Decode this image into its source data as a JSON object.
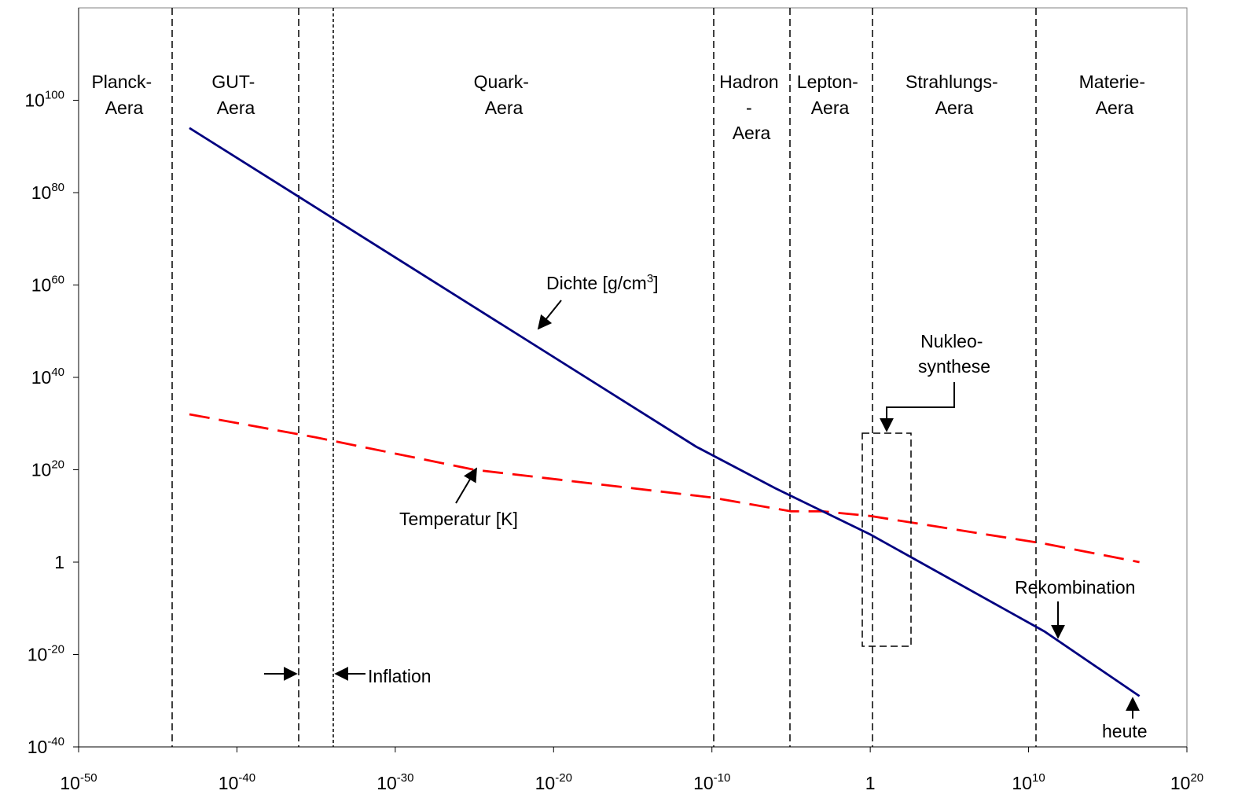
{
  "chart_data": {
    "type": "line",
    "xscale": "log",
    "yscale": "log",
    "xlim": [
      "1e-50",
      "1e20"
    ],
    "ylim": [
      "1e-40",
      "1e120"
    ],
    "grid": false,
    "x_ticks": [
      {
        "base": "10",
        "exp": "-50"
      },
      {
        "base": "10",
        "exp": "-40"
      },
      {
        "base": "10",
        "exp": "-30"
      },
      {
        "base": "10",
        "exp": "-20"
      },
      {
        "base": "10",
        "exp": "-10"
      },
      {
        "base": "1",
        "exp": ""
      },
      {
        "base": "10",
        "exp": "10"
      },
      {
        "base": "10",
        "exp": "20"
      }
    ],
    "y_ticks": [
      {
        "base": "10",
        "exp": "-40"
      },
      {
        "base": "10",
        "exp": "-20"
      },
      {
        "base": "1",
        "exp": ""
      },
      {
        "base": "10",
        "exp": "20"
      },
      {
        "base": "10",
        "exp": "40"
      },
      {
        "base": "10",
        "exp": "60"
      },
      {
        "base": "10",
        "exp": "80"
      },
      {
        "base": "10",
        "exp": "100"
      }
    ],
    "eras": [
      {
        "lines": [
          "Planck-",
          "Aera"
        ]
      },
      {
        "lines": [
          "GUT-",
          "Aera"
        ]
      },
      {
        "lines": [
          "Quark-",
          "Aera"
        ]
      },
      {
        "lines": [
          "Hadron",
          "-",
          "Aera"
        ]
      },
      {
        "lines": [
          "Lepton-",
          "Aera"
        ]
      },
      {
        "lines": [
          "Strahlungs-",
          "Aera"
        ]
      },
      {
        "lines": [
          "Materie-",
          "Aera"
        ]
      }
    ],
    "series": [
      {
        "name": "Dichte [g/cm3]",
        "label_main": "Dichte [g/cm",
        "label_sup": "3",
        "label_end": "]",
        "color": "#000080",
        "style": "solid",
        "x": [
          "1e-43",
          "1e-11",
          "1e-6",
          "1e0",
          "1e11",
          "1e17"
        ],
        "y": [
          "1e94",
          "1e25",
          "1e16",
          "1e6",
          "1e-15",
          "1e-29"
        ]
      },
      {
        "name": "Temperatur [K]",
        "label": "Temperatur [K]",
        "color": "#ff0000",
        "style": "dashed",
        "x": [
          "1e-43",
          "1e-35",
          "1e-25",
          "1e-10",
          "1e-5",
          "1e-3",
          "1e0",
          "1e11",
          "1e17"
        ],
        "y": [
          "1e32",
          "1e27",
          "1e20",
          "1e14",
          "1e11",
          "1e11",
          "1e10",
          "1e4",
          "1e0"
        ]
      }
    ],
    "annotations": {
      "inflation": "Inflation",
      "nukleosynthese": [
        "Nukleo-",
        "synthese"
      ],
      "rekombination": "Rekombination",
      "heute": "heute"
    }
  }
}
